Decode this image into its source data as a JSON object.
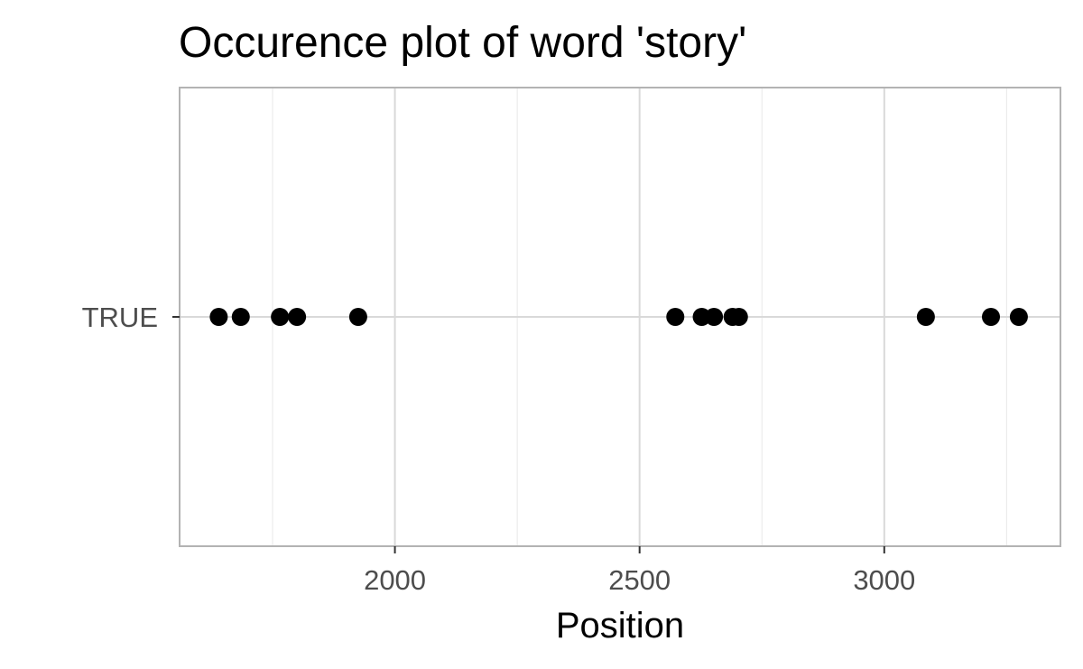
{
  "chart_data": {
    "type": "scatter",
    "title": "Occurence plot of word 'story'",
    "xlabel": "Position",
    "ylabel": "",
    "xlim": [
      1560,
      3360
    ],
    "x_ticks": [
      2000,
      2500,
      3000
    ],
    "x_tick_labels": [
      "2000",
      "2500",
      "3000"
    ],
    "x_minor_ticks": [
      1750,
      2250,
      2750,
      3250
    ],
    "categories": [
      "TRUE"
    ],
    "series": [
      {
        "category": "TRUE",
        "x": [
          1640,
          1685,
          1765,
          1800,
          1925,
          2573,
          2627,
          2652,
          2690,
          2703,
          3085,
          3218,
          3275
        ]
      }
    ],
    "grid": true,
    "legend": "none",
    "colors": {
      "point": "#000000",
      "grid_major": "#d9d9d9",
      "grid_minor": "#e8e8e8",
      "panel_border": "#b3b3b3",
      "tick_text": "#4d4d4d",
      "background": "#ffffff"
    }
  }
}
